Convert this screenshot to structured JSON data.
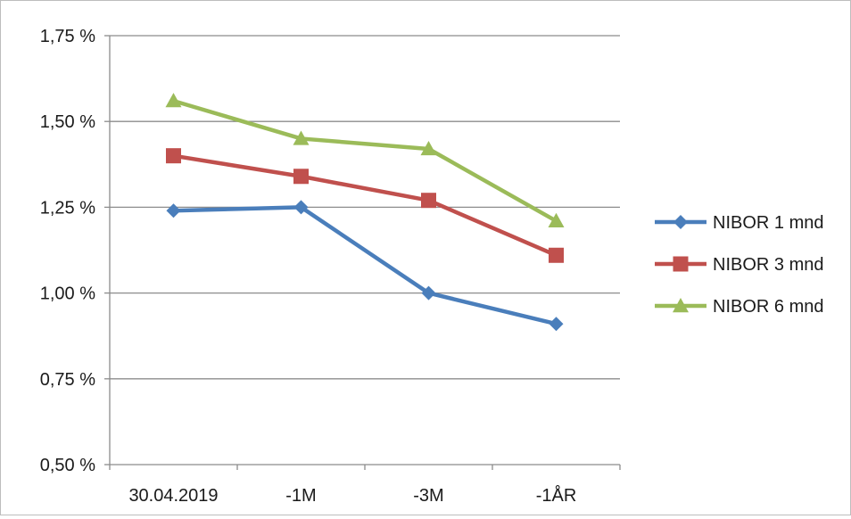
{
  "chart_data": {
    "type": "line",
    "title": "",
    "xlabel": "",
    "ylabel": "",
    "categories": [
      "30.04.2019",
      "-1M",
      "-3M",
      "-1ÅR"
    ],
    "ylim": [
      0.5,
      1.75
    ],
    "yticks": [
      0.5,
      0.75,
      1.0,
      1.25,
      1.5,
      1.75
    ],
    "ytick_labels": [
      "0,50 %",
      "0,75 %",
      "1,00 %",
      "1,25 %",
      "1,50 %",
      "1,75 %"
    ],
    "grid": true,
    "legend_position": "right",
    "series": [
      {
        "name": "NIBOR 1 mnd",
        "values": [
          1.24,
          1.25,
          1.0,
          0.91
        ],
        "color": "#4a7ebb",
        "marker": "diamond"
      },
      {
        "name": "NIBOR 3 mnd",
        "values": [
          1.4,
          1.34,
          1.27,
          1.11
        ],
        "color": "#c0504d",
        "marker": "square"
      },
      {
        "name": "NIBOR 6 mnd",
        "values": [
          1.56,
          1.45,
          1.42,
          1.21
        ],
        "color": "#9bbb59",
        "marker": "triangle"
      }
    ]
  }
}
